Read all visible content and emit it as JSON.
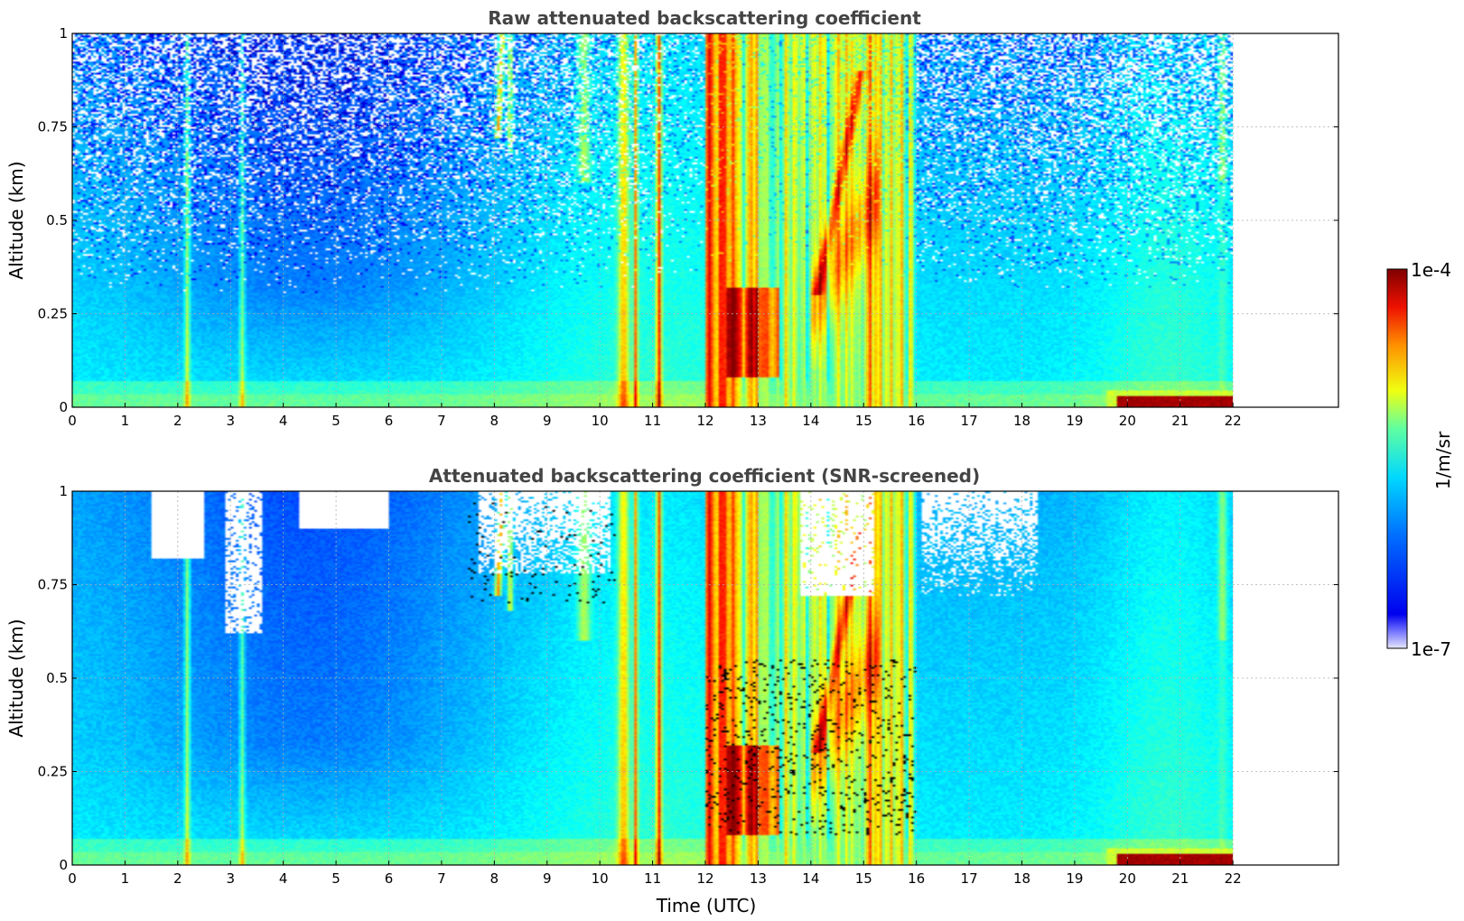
{
  "chart_data": [
    {
      "type": "heatmap",
      "title": "Raw attenuated backscattering coefficient",
      "xlabel": "",
      "ylabel": "Altitude (km)",
      "xlim": [
        0,
        24
      ],
      "ylim": [
        0,
        1
      ],
      "data_x_extent": [
        0,
        22
      ],
      "xticks": [
        0,
        1,
        2,
        3,
        4,
        5,
        6,
        7,
        8,
        9,
        10,
        11,
        12,
        13,
        14,
        15,
        16,
        17,
        18,
        19,
        20,
        21,
        22
      ],
      "yticks": [
        0,
        0.25,
        0.5,
        0.75,
        1
      ],
      "ytick_labels": [
        "0",
        "0.25",
        "0.5",
        "0.75",
        "1"
      ],
      "grid": true,
      "screened": false,
      "colorscale": "jet",
      "features": [
        {
          "label": "thin vertical streaks",
          "x": [
            2.1,
            3.2
          ]
        },
        {
          "label": "thick cloud/precipitation",
          "x": [
            12.0,
            16.0
          ]
        },
        {
          "label": "strong near-surface layer",
          "x": [
            19.8,
            22.0
          ]
        }
      ]
    },
    {
      "type": "heatmap",
      "title": "Attenuated backscattering coefficient (SNR-screened)",
      "xlabel": "Time (UTC)",
      "ylabel": "Altitude (km)",
      "xlim": [
        0,
        24
      ],
      "ylim": [
        0,
        1
      ],
      "data_x_extent": [
        0,
        22
      ],
      "xticks": [
        0,
        1,
        2,
        3,
        4,
        5,
        6,
        7,
        8,
        9,
        10,
        11,
        12,
        13,
        14,
        15,
        16,
        17,
        18,
        19,
        20,
        21,
        22
      ],
      "yticks": [
        0,
        0.25,
        0.5,
        0.75,
        1
      ],
      "ytick_labels": [
        "0",
        "0.25",
        "0.5",
        "0.75",
        "1"
      ],
      "grid": true,
      "screened": true,
      "colorscale": "jet",
      "features": [
        {
          "label": "thin vertical streaks",
          "x": [
            2.1,
            3.2
          ]
        },
        {
          "label": "thick cloud/precipitation",
          "x": [
            12.0,
            16.0
          ]
        },
        {
          "label": "strong near-surface layer",
          "x": [
            19.8,
            22.0
          ]
        }
      ]
    }
  ],
  "colorbar": {
    "label": "1/m/sr",
    "max_label": "1e-4",
    "min_label": "1e-7",
    "scale": "log",
    "range": [
      1e-07,
      0.0001
    ]
  }
}
